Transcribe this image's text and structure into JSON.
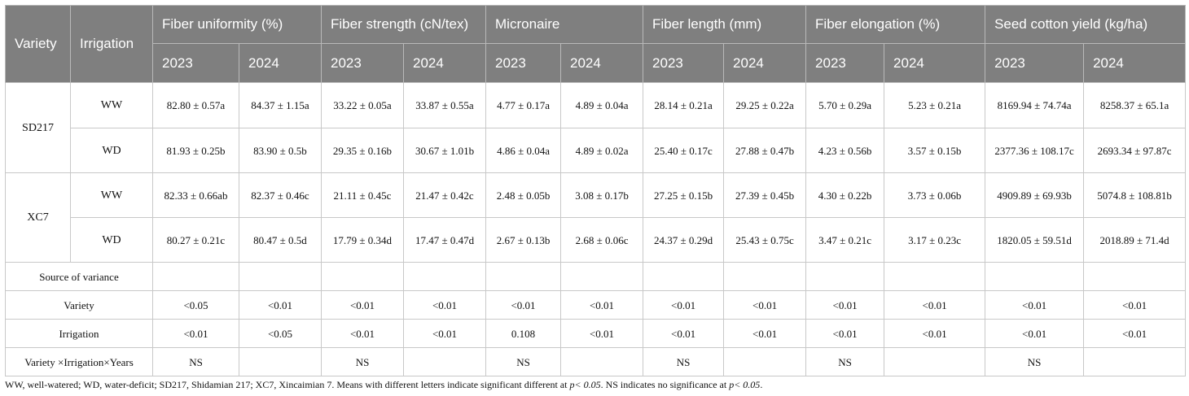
{
  "header": {
    "variety": "Variety",
    "irrigation": "Irrigation",
    "groups": [
      "Fiber uniformity (%)",
      "Fiber strength (cN/tex)",
      "Micronaire",
      "Fiber length (mm)",
      "Fiber elongation (%)",
      "Seed cotton yield (kg/ha)"
    ],
    "years": [
      "2023",
      "2024"
    ]
  },
  "rows": [
    {
      "variety": "SD217",
      "irrigation": "WW",
      "cells": [
        "82.80 ± 0.57a",
        "84.37 ± 1.15a",
        "33.22 ± 0.05a",
        "33.87 ± 0.55a",
        "4.77 ± 0.17a",
        "4.89 ± 0.04a",
        "28.14 ± 0.21a",
        "29.25 ± 0.22a",
        "5.70 ± 0.29a",
        "5.23 ± 0.21a",
        "8169.94 ± 74.74a",
        "8258.37 ± 65.1a"
      ]
    },
    {
      "variety": "SD217",
      "irrigation": "WD",
      "cells": [
        "81.93 ± 0.25b",
        "83.90 ± 0.5b",
        "29.35 ± 0.16b",
        "30.67 ± 1.01b",
        "4.86 ± 0.04a",
        "4.89 ± 0.02a",
        "25.40 ± 0.17c",
        "27.88 ± 0.47b",
        "4.23 ± 0.56b",
        "3.57 ± 0.15b",
        "2377.36 ± 108.17c",
        "2693.34 ± 97.87c"
      ]
    },
    {
      "variety": "XC7",
      "irrigation": "WW",
      "cells": [
        "82.33 ± 0.66ab",
        "82.37 ± 0.46c",
        "21.11 ± 0.45c",
        "21.47 ± 0.42c",
        "2.48 ± 0.05b",
        "3.08 ± 0.17b",
        "27.25 ± 0.15b",
        "27.39 ± 0.45b",
        "4.30 ± 0.22b",
        "3.73 ± 0.06b",
        "4909.89 ± 69.93b",
        "5074.8 ± 108.81b"
      ]
    },
    {
      "variety": "XC7",
      "irrigation": "WD",
      "cells": [
        "80.27 ± 0.21c",
        "80.47 ± 0.5d",
        "17.79 ± 0.34d",
        "17.47 ± 0.47d",
        "2.67 ± 0.13b",
        "2.68 ± 0.06c",
        "24.37 ± 0.29d",
        "25.43 ± 0.75c",
        "3.47 ± 0.21c",
        "3.17 ± 0.23c",
        "1820.05 ± 59.51d",
        "2018.89 ± 71.4d"
      ]
    }
  ],
  "variance": {
    "title": "Source of variance",
    "rows": [
      {
        "label": "Variety",
        "cells": [
          "<0.05",
          "<0.01",
          "<0.01",
          "<0.01",
          "<0.01",
          "<0.01",
          "<0.01",
          "<0.01",
          "<0.01",
          "<0.01",
          "<0.01",
          "<0.01"
        ]
      },
      {
        "label": "Irrigation",
        "cells": [
          "<0.01",
          "<0.05",
          "<0.01",
          "<0.01",
          "0.108",
          "<0.01",
          "<0.01",
          "<0.01",
          "<0.01",
          "<0.01",
          "<0.01",
          "<0.01"
        ]
      },
      {
        "label": "Variety ×Irrigation×Years",
        "cells": [
          "NS",
          "",
          "NS",
          "",
          "NS",
          "",
          "NS",
          "",
          "NS",
          "",
          "NS",
          ""
        ]
      }
    ]
  },
  "footnote": {
    "part1": "WW, well-watered; WD, water-deficit; SD217, Shidamian 217; XC7, Xincaimian 7. Means with different letters indicate significant different at ",
    "p1": "p< 0.05",
    "part2": ". NS indicates no significance at ",
    "p2": "p< 0.05",
    "part3": "."
  }
}
